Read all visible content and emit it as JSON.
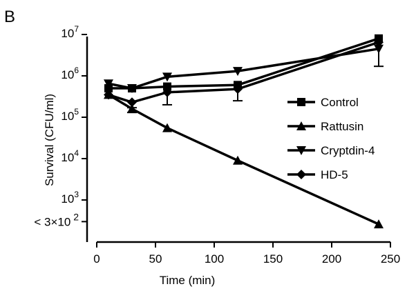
{
  "chart_data": {
    "type": "line",
    "panel_label": "B",
    "title": "",
    "xlabel": "Time (min)",
    "ylabel": "Survival (CFU/ml)",
    "y_scale": "log",
    "xlim": [
      0,
      250
    ],
    "ylim": [
      100,
      10000000
    ],
    "x_ticks": [
      0,
      50,
      100,
      150,
      200,
      250
    ],
    "y_ticks": [
      {
        "base": "10",
        "exp": "3",
        "value": 1000
      },
      {
        "base": "10",
        "exp": "4",
        "value": 10000
      },
      {
        "base": "10",
        "exp": "5",
        "value": 100000
      },
      {
        "base": "10",
        "exp": "6",
        "value": 1000000
      },
      {
        "base": "10",
        "exp": "7",
        "value": 10000000
      }
    ],
    "detection_limit": {
      "text": "< 3×10",
      "exp": "2",
      "value": 300
    },
    "legend_position": "right",
    "grid": false,
    "series": [
      {
        "name": "Control",
        "marker": "square",
        "x": [
          10,
          30,
          60,
          120,
          240
        ],
        "y": [
          500000,
          500000,
          550000,
          600000,
          8000000
        ],
        "err_low": [
          null,
          null,
          null,
          null,
          null
        ]
      },
      {
        "name": "Rattusin",
        "marker": "triangle-up",
        "x": [
          10,
          30,
          60,
          120,
          240
        ],
        "y": [
          350000,
          160000,
          55000,
          9000,
          260
        ],
        "err_low": [
          null,
          130000,
          null,
          null,
          null
        ]
      },
      {
        "name": "Cryptdin-4",
        "marker": "triangle-down",
        "x": [
          10,
          30,
          60,
          120,
          240
        ],
        "y": [
          650000,
          500000,
          950000,
          1300000,
          4500000
        ],
        "err_low": [
          null,
          null,
          null,
          null,
          1700000
        ]
      },
      {
        "name": "HD-5",
        "marker": "diamond",
        "x": [
          10,
          30,
          60,
          120,
          240
        ],
        "y": [
          350000,
          230000,
          400000,
          480000,
          6500000
        ],
        "err_low": [
          null,
          170000,
          200000,
          250000,
          null
        ]
      }
    ]
  }
}
